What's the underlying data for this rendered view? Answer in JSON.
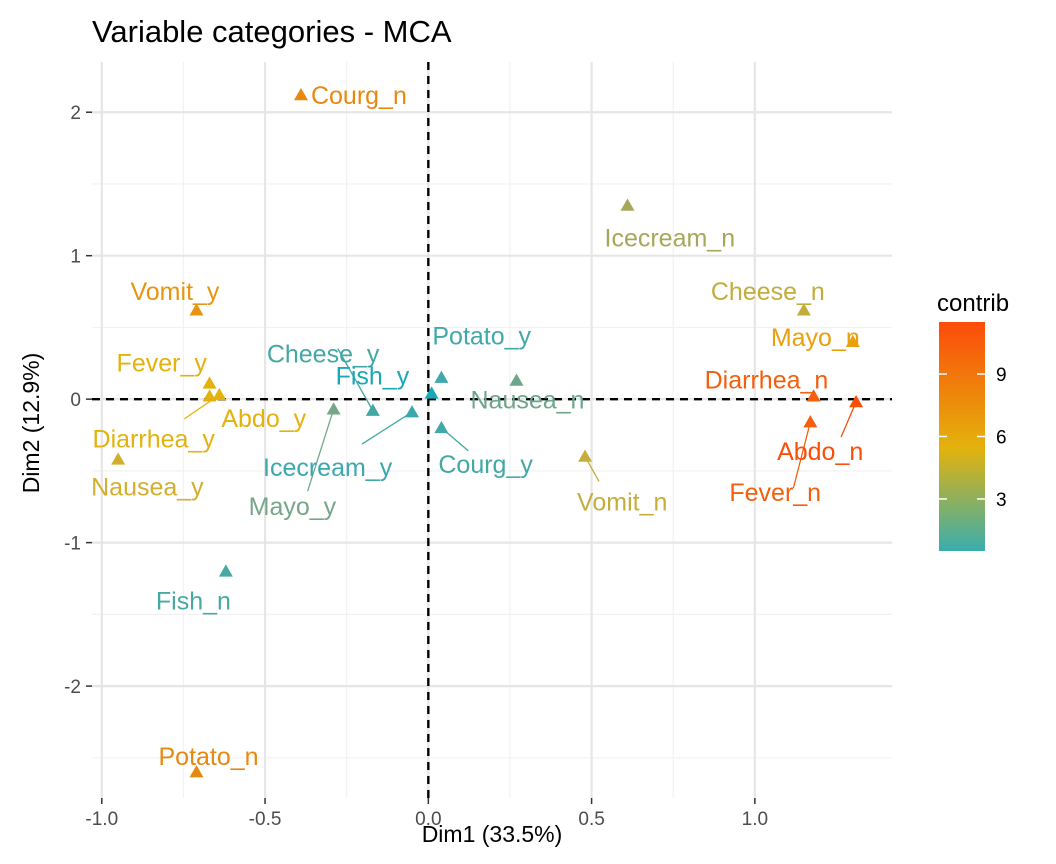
{
  "chart_data": {
    "type": "scatter",
    "title": "Variable categories - MCA",
    "xlabel": "Dim1 (33.5%)",
    "ylabel": "Dim2 (12.9%)",
    "xlim": [
      -1.03,
      1.42
    ],
    "ylim": [
      -2.78,
      2.35
    ],
    "x_ticks": [
      -1.0,
      -0.5,
      0.0,
      0.5,
      1.0
    ],
    "x_tick_labels": [
      "-1.0",
      "-0.5",
      "0.0",
      "0.5",
      "1.0"
    ],
    "y_ticks": [
      -2,
      -1,
      0,
      1,
      2
    ],
    "y_tick_labels": [
      "-2",
      "-1",
      "0",
      "1",
      "2"
    ],
    "grid": true,
    "reference_lines": {
      "x": 0,
      "y": 0,
      "style": "dashed"
    },
    "legend": {
      "title": "contrib",
      "placement": "right",
      "min": 0.5,
      "max": 11.5,
      "ticks": [
        3,
        6,
        9
      ],
      "tick_labels": [
        "3",
        "6",
        "9"
      ],
      "colors": [
        "#00AFBB",
        "#E7B800",
        "#FC4E07"
      ]
    },
    "points": [
      {
        "label": "Courg_n",
        "x": -0.39,
        "y": 2.12,
        "contrib": 7.6,
        "color": "#e8890f"
      },
      {
        "label": "Icecream_n",
        "x": 0.61,
        "y": 1.35,
        "contrib": 3.3,
        "color": "#a5a85a"
      },
      {
        "label": "Vomit_y",
        "x": -0.71,
        "y": 0.62,
        "contrib": 6.8,
        "color": "#e99410"
      },
      {
        "label": "Cheese_n",
        "x": 1.15,
        "y": 0.62,
        "contrib": 4.4,
        "color": "#c3ad3a"
      },
      {
        "label": "Mayo_n",
        "x": 1.3,
        "y": 0.4,
        "contrib": 6.1,
        "color": "#e8a00e"
      },
      {
        "label": "Fever_y",
        "x": -0.67,
        "y": 0.11,
        "contrib": 5.6,
        "color": "#e3b20c"
      },
      {
        "label": "Abdo_y",
        "x": -0.64,
        "y": 0.03,
        "contrib": 5.6,
        "color": "#e3b20c"
      },
      {
        "label": "Diarrhea_y",
        "x": -0.67,
        "y": 0.02,
        "contrib": 5.6,
        "color": "#e3b20c"
      },
      {
        "label": "Nausea_y",
        "x": -0.95,
        "y": -0.42,
        "contrib": 4.7,
        "color": "#d3ae2e"
      },
      {
        "label": "Cheese_y",
        "x": -0.17,
        "y": -0.08,
        "contrib": 1.2,
        "color": "#43a8a3"
      },
      {
        "label": "Fish_y",
        "x": 0.01,
        "y": 0.04,
        "contrib": 0.3,
        "color": "#19a8b6"
      },
      {
        "label": "Potato_y",
        "x": 0.04,
        "y": 0.15,
        "contrib": 0.9,
        "color": "#3fa9ab"
      },
      {
        "label": "Nausea_n",
        "x": 0.27,
        "y": 0.13,
        "contrib": 2.0,
        "color": "#6da58d"
      },
      {
        "label": "Mayo_y",
        "x": -0.29,
        "y": -0.07,
        "contrib": 1.9,
        "color": "#76a68a"
      },
      {
        "label": "Icecream_y",
        "x": -0.05,
        "y": -0.09,
        "contrib": 0.9,
        "color": "#3ba8ae"
      },
      {
        "label": "Courg_y",
        "x": 0.04,
        "y": -0.2,
        "contrib": 1.0,
        "color": "#42a8a6"
      },
      {
        "label": "Vomit_n",
        "x": 0.48,
        "y": -0.4,
        "contrib": 4.1,
        "color": "#c4ae3c"
      },
      {
        "label": "Diarrhea_n",
        "x": 1.18,
        "y": 0.02,
        "contrib": 10.3,
        "color": "#f45e0c"
      },
      {
        "label": "Abdo_n",
        "x": 1.31,
        "y": -0.02,
        "contrib": 11.2,
        "color": "#fb4e08"
      },
      {
        "label": "Fever_n",
        "x": 1.17,
        "y": -0.16,
        "contrib": 10.3,
        "color": "#f45e0c"
      },
      {
        "label": "Fish_n",
        "x": -0.62,
        "y": -1.2,
        "contrib": 1.5,
        "color": "#47aaa2"
      },
      {
        "label": "Potato_n",
        "x": -0.71,
        "y": -2.6,
        "contrib": 7.5,
        "color": "#e8890f"
      }
    ]
  }
}
